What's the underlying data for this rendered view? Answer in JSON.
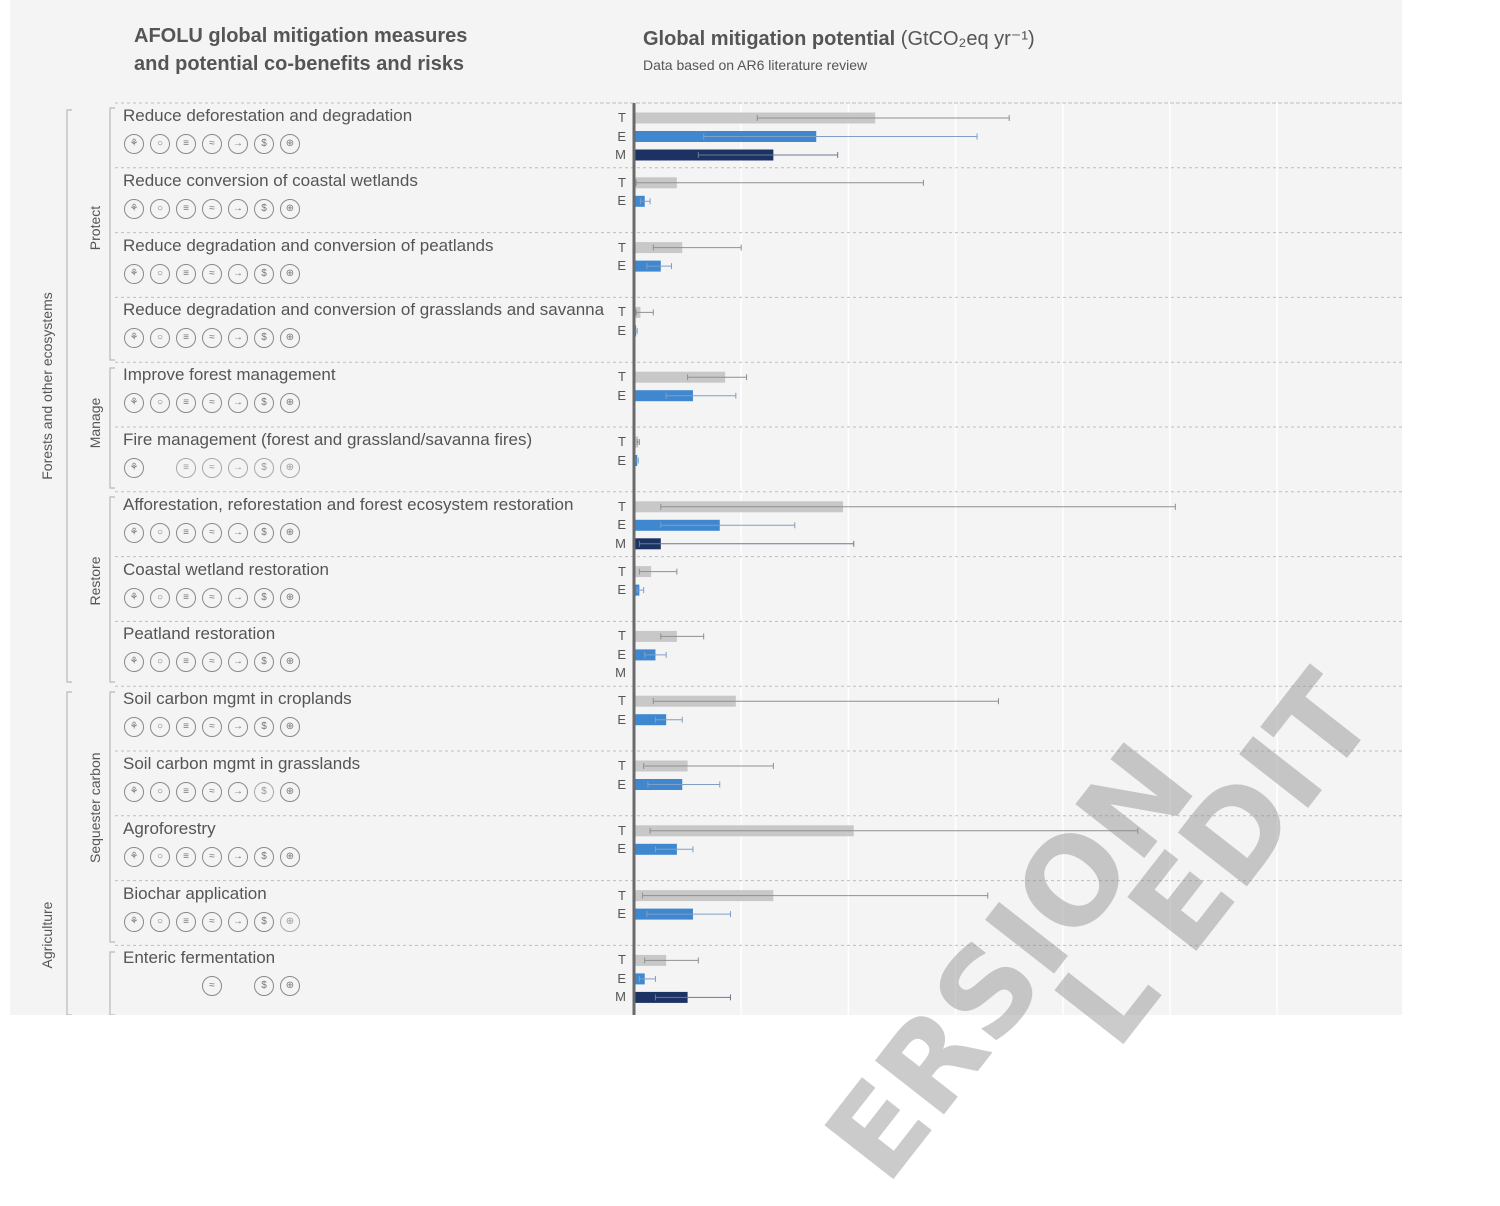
{
  "header": {
    "left_title_line1": "AFOLU global mitigation measures",
    "left_title_line2": "and potential co-benefits and risks",
    "right_title": "Global mitigation potential",
    "right_unit": "(GtCO₂eq yr⁻¹)",
    "right_subtitle": "Data based on AR6 literature review"
  },
  "sectors": [
    {
      "label": "Forests and other ecosystems"
    },
    {
      "label": "Agriculture"
    }
  ],
  "groups": [
    {
      "label": "Protect"
    },
    {
      "label": "Manage"
    },
    {
      "label": "Restore"
    },
    {
      "label": "Sequester carbon"
    }
  ],
  "icon_legend": [
    "biodiversity-icon",
    "water-icon",
    "land-icon",
    "food-icon",
    "migration-icon",
    "economy-icon",
    "health-icon"
  ],
  "colors": {
    "technical": "#c8c8c8",
    "economic": "#3f88cf",
    "sectoral": "#1c3263",
    "panel": "#f4f4f4"
  },
  "watermark": [
    "ERSION",
    "L EDIT"
  ],
  "measures": [
    {
      "label": "Reduce deforestation and degradation",
      "icons": "FFFFFFF",
      "series": [
        "T",
        "E",
        "M"
      ]
    },
    {
      "label": "Reduce conversion of coastal wetlands",
      "icons": "FFFFFFF",
      "series": [
        "T",
        "E"
      ]
    },
    {
      "label": "Reduce degradation and conversion of peatlands",
      "icons": "FFFFFFF",
      "series": [
        "T",
        "E"
      ]
    },
    {
      "label": "Reduce degradation and conversion of grasslands and savanna",
      "icons": "FFFFFFF",
      "series": [
        "T",
        "E"
      ]
    },
    {
      "label": "Improve forest management",
      "icons": "FFFFFFF",
      "series": [
        "T",
        "E"
      ]
    },
    {
      "label": "Fire management (forest and grassland/savanna fires)",
      "icons": "F.OOOOO",
      "series": [
        "T",
        "E"
      ]
    },
    {
      "label": "Afforestation, reforestation and forest ecosystem restoration",
      "icons": "FFFFFFF",
      "series": [
        "T",
        "E",
        "M"
      ]
    },
    {
      "label": "Coastal wetland restoration",
      "icons": "FFFFFFF",
      "series": [
        "T",
        "E"
      ]
    },
    {
      "label": "Peatland restoration",
      "icons": "FFFFFFF",
      "series": [
        "T",
        "E",
        "M"
      ]
    },
    {
      "label": "Soil carbon mgmt in croplands",
      "icons": "FFFFFFF",
      "series": [
        "T",
        "E"
      ]
    },
    {
      "label": "Soil carbon mgmt in grasslands",
      "icons": "FFFFFOF",
      "series": [
        "T",
        "E"
      ]
    },
    {
      "label": "Agroforestry",
      "icons": "FFFFFFF",
      "series": [
        "T",
        "E"
      ]
    },
    {
      "label": "Biochar application",
      "icons": "FFFFFFO",
      "series": [
        "T",
        "E"
      ]
    },
    {
      "label": "Enteric fermentation",
      "icons": "...F.FF",
      "series": [
        "T",
        "E",
        "M"
      ]
    }
  ],
  "chart_data": {
    "type": "bar",
    "orientation": "horizontal",
    "title": "Global mitigation potential",
    "unit": "GtCO2eq yr-1",
    "xlim": [
      0,
      6
    ],
    "grid": true,
    "series": [
      {
        "name": "T",
        "values": [
          2.25,
          0.4,
          0.45,
          0.06,
          0.85,
          0.04,
          1.95,
          0.16,
          0.4,
          0.95,
          0.5,
          2.05,
          1.3,
          0.3
        ],
        "low": [
          1.15,
          0.02,
          0.18,
          0.02,
          0.5,
          0.03,
          0.25,
          0.05,
          0.25,
          0.18,
          0.09,
          0.15,
          0.08,
          0.1
        ],
        "high": [
          3.5,
          2.7,
          1.0,
          0.18,
          1.05,
          0.05,
          5.05,
          0.4,
          0.65,
          3.4,
          1.3,
          4.7,
          3.3,
          0.6
        ]
      },
      {
        "name": "E",
        "values": [
          1.7,
          0.1,
          0.25,
          0.02,
          0.55,
          0.03,
          0.8,
          0.05,
          0.2,
          0.3,
          0.45,
          0.4,
          0.55,
          0.1
        ],
        "low": [
          0.65,
          0.06,
          0.12,
          0.01,
          0.3,
          0.01,
          0.25,
          0.03,
          0.1,
          0.2,
          0.13,
          0.2,
          0.12,
          0.05
        ],
        "high": [
          3.2,
          0.15,
          0.35,
          0.03,
          0.95,
          0.04,
          1.5,
          0.09,
          0.3,
          0.45,
          0.8,
          0.55,
          0.9,
          0.2
        ]
      },
      {
        "name": "M",
        "values": [
          1.3,
          null,
          null,
          null,
          null,
          null,
          0.25,
          null,
          0.0,
          null,
          null,
          null,
          null,
          0.5
        ],
        "low": [
          0.6,
          null,
          null,
          null,
          null,
          null,
          0.05,
          null,
          null,
          null,
          null,
          null,
          null,
          0.2
        ],
        "high": [
          1.9,
          null,
          null,
          null,
          null,
          null,
          2.05,
          null,
          null,
          null,
          null,
          null,
          null,
          0.9
        ]
      }
    ]
  }
}
